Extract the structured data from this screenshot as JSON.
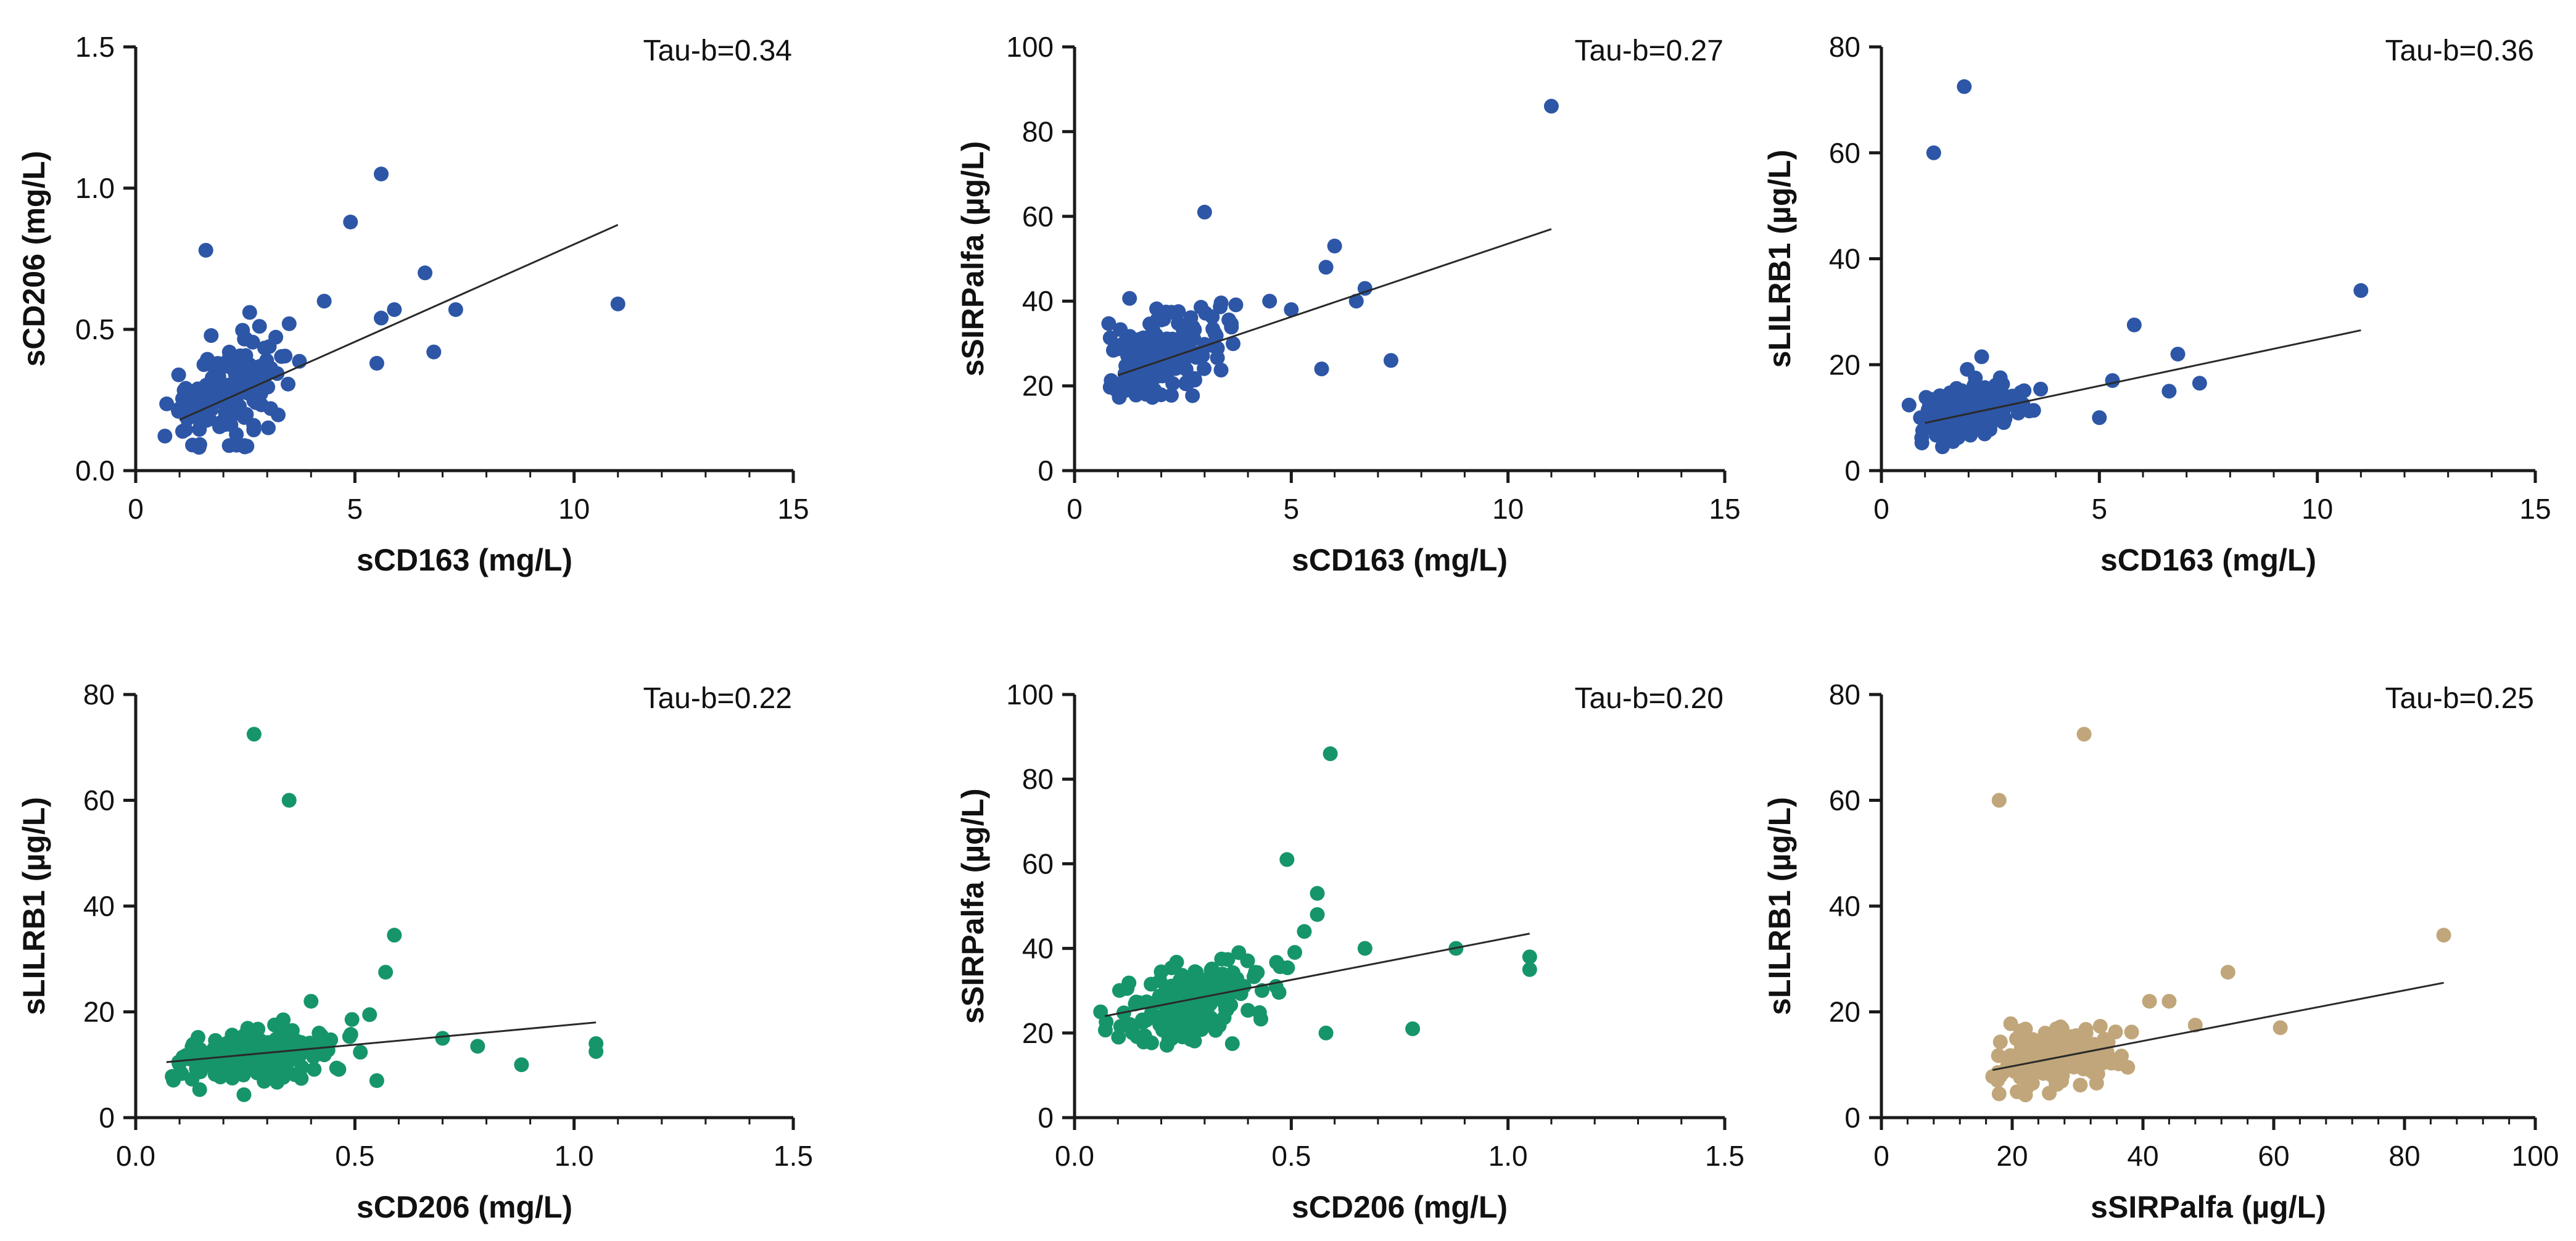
{
  "colors": {
    "blue": "#2d56a6",
    "green": "#16956a",
    "tan": "#c0a67a"
  },
  "chart_data": [
    {
      "type": "scatter",
      "id": "p1",
      "color": "blue",
      "annotation": "Tau-b=0.34",
      "xlabel": "sCD163 (mg/L)",
      "ylabel": "sCD206 (mg/L)",
      "xlim": [
        0,
        15
      ],
      "ylim": [
        0,
        1.5
      ],
      "xticks": [
        0,
        5,
        10,
        15
      ],
      "xtick_labels": [
        "0",
        "5",
        "10",
        "15"
      ],
      "yticks": [
        0,
        0.5,
        1.0,
        1.5
      ],
      "ytick_labels": [
        "0.0",
        "0.5",
        "1.0",
        "1.5"
      ],
      "fit": {
        "x": [
          1.0,
          11.0
        ],
        "y": [
          0.18,
          0.87
        ]
      },
      "cloud": {
        "n": 170,
        "cx": 2.1,
        "sx": 0.7,
        "cy": 0.28,
        "sy": 0.09,
        "rho": 0.45,
        "xmin": 0.6,
        "xmax": 4.5,
        "ymin": 0.08,
        "ymax": 0.6
      },
      "points": [
        [
          11.0,
          0.59
        ],
        [
          5.6,
          1.05
        ],
        [
          4.9,
          0.88
        ],
        [
          6.6,
          0.7
        ],
        [
          7.3,
          0.57
        ],
        [
          5.9,
          0.57
        ],
        [
          5.6,
          0.54
        ],
        [
          6.8,
          0.42
        ],
        [
          5.5,
          0.38
        ],
        [
          4.3,
          0.6
        ],
        [
          1.6,
          0.78
        ],
        [
          2.6,
          0.56
        ],
        [
          3.5,
          0.52
        ]
      ]
    },
    {
      "type": "scatter",
      "id": "p2",
      "color": "blue",
      "annotation": "Tau-b=0.27",
      "xlabel": "sCD163 (mg/L)",
      "ylabel": "sSIRPalfa (µg/L)",
      "xlim": [
        0,
        15
      ],
      "ylim": [
        0,
        100
      ],
      "xticks": [
        0,
        5,
        10,
        15
      ],
      "xtick_labels": [
        "0",
        "5",
        "10",
        "15"
      ],
      "yticks": [
        0,
        20,
        40,
        60,
        80,
        100
      ],
      "ytick_labels": [
        "0",
        "20",
        "40",
        "60",
        "80",
        "100"
      ],
      "fit": {
        "x": [
          1.0,
          11.0
        ],
        "y": [
          22.5,
          57.0
        ]
      },
      "cloud": {
        "n": 170,
        "cx": 2.0,
        "sx": 0.7,
        "cy": 27,
        "sy": 5.5,
        "rho": 0.4,
        "xmin": 0.6,
        "xmax": 4.5,
        "ymin": 17,
        "ymax": 44
      },
      "points": [
        [
          11.0,
          86
        ],
        [
          3.0,
          61
        ],
        [
          6.0,
          53
        ],
        [
          5.8,
          48
        ],
        [
          6.7,
          43
        ],
        [
          7.3,
          26
        ],
        [
          5.7,
          24
        ],
        [
          4.5,
          40
        ],
        [
          5.0,
          38
        ],
        [
          6.5,
          40
        ]
      ]
    },
    {
      "type": "scatter",
      "id": "p3",
      "color": "blue",
      "annotation": "Tau-b=0.36",
      "xlabel": "sCD163 (mg/L)",
      "ylabel": "sLILRB1 (µg/L)",
      "xlim": [
        0,
        15
      ],
      "ylim": [
        0,
        80
      ],
      "xticks": [
        0,
        5,
        10,
        15
      ],
      "xtick_labels": [
        "0",
        "5",
        "10",
        "15"
      ],
      "yticks": [
        0,
        20,
        40,
        60,
        80
      ],
      "ytick_labels": [
        "0",
        "20",
        "40",
        "60",
        "80"
      ],
      "fit": {
        "x": [
          1.0,
          11.0
        ],
        "y": [
          9.0,
          26.5
        ]
      },
      "cloud": {
        "n": 170,
        "cx": 2.0,
        "sx": 0.7,
        "cy": 11.5,
        "sy": 2.8,
        "rho": 0.4,
        "xmin": 0.6,
        "xmax": 4.5,
        "ymin": 5,
        "ymax": 20
      },
      "points": [
        [
          1.9,
          72.5
        ],
        [
          1.2,
          60
        ],
        [
          11.0,
          34
        ],
        [
          5.8,
          27.5
        ],
        [
          6.8,
          22
        ],
        [
          7.3,
          16.5
        ],
        [
          5.3,
          17
        ],
        [
          5.0,
          10
        ],
        [
          6.6,
          15
        ],
        [
          2.3,
          21.5
        ],
        [
          1.4,
          4.5
        ]
      ]
    },
    {
      "type": "scatter",
      "id": "p4",
      "color": "green",
      "annotation": "Tau-b=0.22",
      "xlabel": "sCD206 (mg/L)",
      "ylabel": "sLILRB1 (µg/L)",
      "xlim": [
        0,
        1.5
      ],
      "ylim": [
        0,
        80
      ],
      "xticks": [
        0,
        0.5,
        1.0,
        1.5
      ],
      "xtick_labels": [
        "0.0",
        "0.5",
        "1.0",
        "1.5"
      ],
      "yticks": [
        0,
        20,
        40,
        60,
        80
      ],
      "ytick_labels": [
        "0",
        "20",
        "40",
        "60",
        "80"
      ],
      "fit": {
        "x": [
          0.07,
          1.05
        ],
        "y": [
          10.5,
          18.0
        ]
      },
      "cloud": {
        "n": 175,
        "cx": 0.27,
        "sx": 0.09,
        "cy": 11.5,
        "sy": 3.0,
        "rho": 0.3,
        "xmin": 0.08,
        "xmax": 0.58,
        "ymin": 4,
        "ymax": 21
      },
      "points": [
        [
          0.27,
          72.5
        ],
        [
          0.35,
          60
        ],
        [
          0.59,
          34.5
        ],
        [
          0.57,
          27.5
        ],
        [
          0.7,
          15
        ],
        [
          0.78,
          13.5
        ],
        [
          0.88,
          10
        ],
        [
          1.05,
          14
        ],
        [
          1.05,
          12.5
        ],
        [
          0.55,
          7
        ],
        [
          0.4,
          22
        ]
      ]
    },
    {
      "type": "scatter",
      "id": "p5",
      "color": "green",
      "annotation": "Tau-b=0.20",
      "xlabel": "sCD206 (mg/L)",
      "ylabel": "sSIRPalfa (µg/L)",
      "xlim": [
        0,
        1.5
      ],
      "ylim": [
        0,
        100
      ],
      "xticks": [
        0,
        0.5,
        1.0,
        1.5
      ],
      "xtick_labels": [
        "0.0",
        "0.5",
        "1.0",
        "1.5"
      ],
      "yticks": [
        0,
        20,
        40,
        60,
        80,
        100
      ],
      "ytick_labels": [
        "0",
        "20",
        "40",
        "60",
        "80",
        "100"
      ],
      "fit": {
        "x": [
          0.07,
          1.05
        ],
        "y": [
          24.0,
          43.5
        ]
      },
      "cloud": {
        "n": 175,
        "cx": 0.27,
        "sx": 0.09,
        "cy": 27,
        "sy": 5.5,
        "rho": 0.3,
        "xmin": 0.07,
        "xmax": 0.58,
        "ymin": 17,
        "ymax": 45
      },
      "points": [
        [
          0.59,
          86
        ],
        [
          0.49,
          61
        ],
        [
          0.56,
          53
        ],
        [
          0.56,
          48
        ],
        [
          0.53,
          44
        ],
        [
          0.88,
          40
        ],
        [
          1.05,
          38
        ],
        [
          1.05,
          35
        ],
        [
          0.78,
          21
        ],
        [
          0.67,
          40
        ],
        [
          0.58,
          20
        ],
        [
          0.06,
          25
        ]
      ]
    },
    {
      "type": "scatter",
      "id": "p6",
      "color": "tan",
      "annotation": "Tau-b=0.25",
      "xlabel": "sSIRPalfa (µg/L)",
      "ylabel": "sLILRB1 (µg/L)",
      "xlim": [
        0,
        100
      ],
      "ylim": [
        0,
        80
      ],
      "xticks": [
        0,
        20,
        40,
        60,
        80,
        100
      ],
      "xtick_labels": [
        "0",
        "20",
        "40",
        "60",
        "80",
        "100"
      ],
      "yticks": [
        0,
        20,
        40,
        60,
        80
      ],
      "ytick_labels": [
        "0",
        "20",
        "40",
        "60",
        "80"
      ],
      "fit": {
        "x": [
          17,
          86
        ],
        "y": [
          9.0,
          25.5
        ]
      },
      "cloud": {
        "n": 175,
        "cx": 27,
        "sx": 5.5,
        "cy": 11.5,
        "sy": 2.8,
        "rho": 0.35,
        "xmin": 17,
        "xmax": 44,
        "ymin": 4,
        "ymax": 21
      },
      "points": [
        [
          31,
          72.5
        ],
        [
          18,
          60
        ],
        [
          86,
          34.5
        ],
        [
          53,
          27.5
        ],
        [
          61,
          17
        ],
        [
          44,
          22
        ],
        [
          41,
          22
        ],
        [
          48,
          17.5
        ],
        [
          18,
          4.5
        ]
      ]
    }
  ]
}
